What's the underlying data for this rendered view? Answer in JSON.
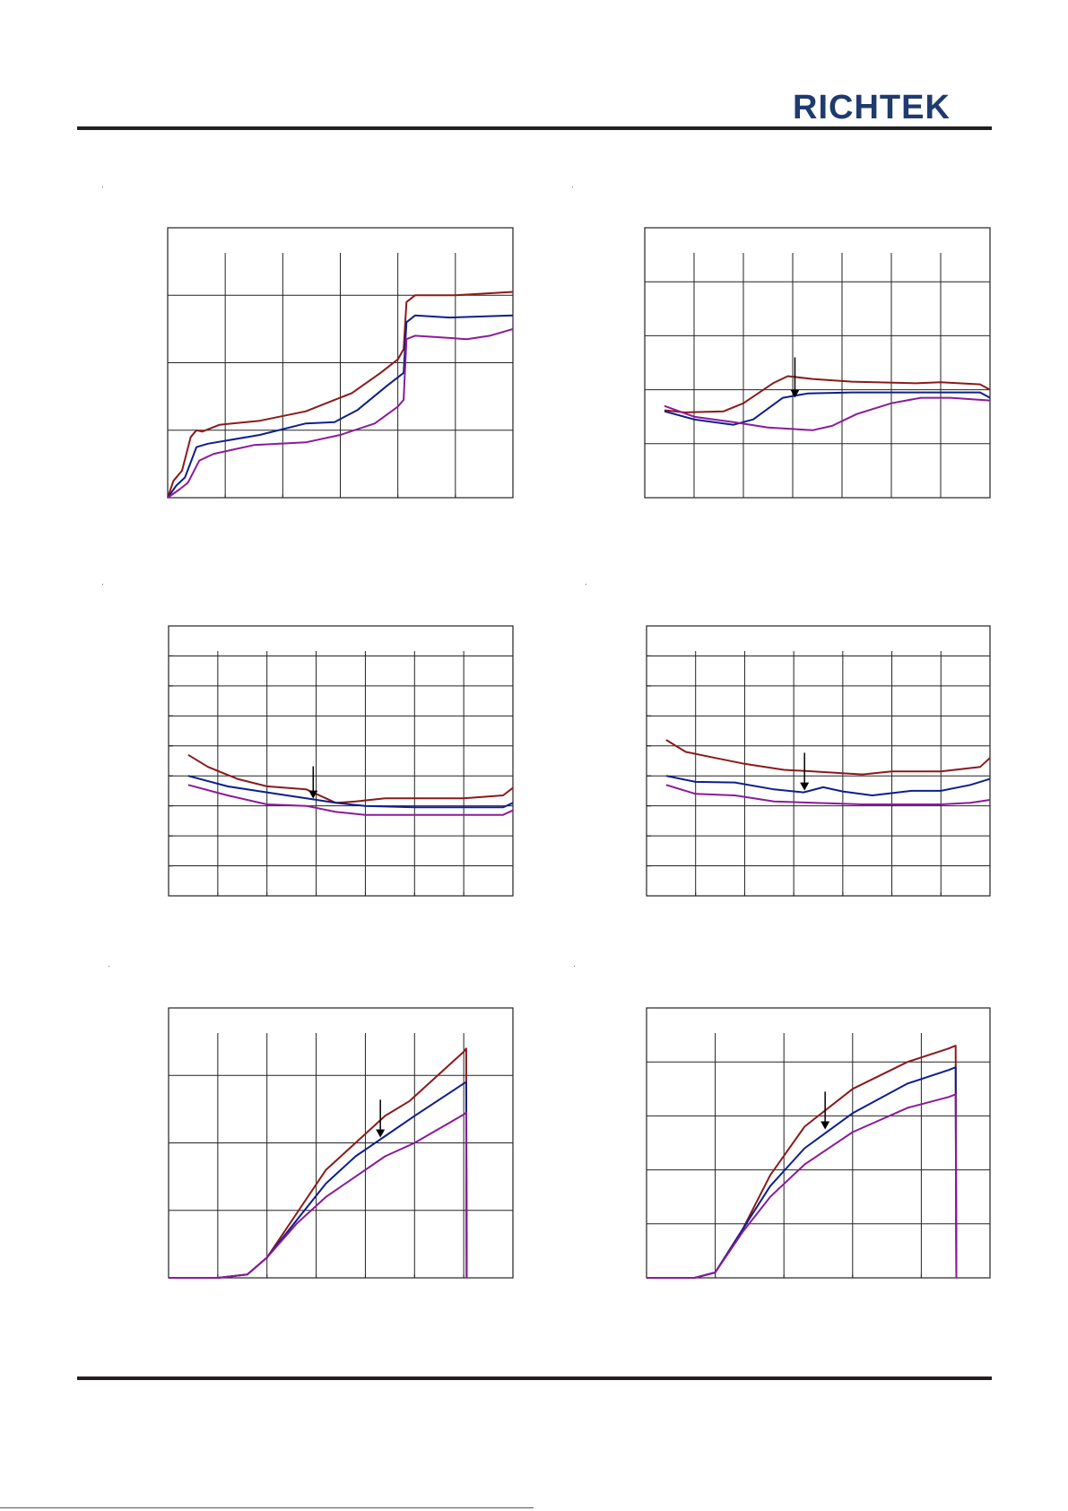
{
  "header": {
    "logo_text": "RICHTEK",
    "logo_color": "#1f3a6e"
  },
  "colors": {
    "series1": "#8b1a1a",
    "series2": "#0d1f8c",
    "series3": "#8b1a9b",
    "grid": "#222222"
  },
  "footer": {
    "text": ""
  },
  "chart_data": [
    {
      "type": "line",
      "grid": true,
      "xlim": [
        0,
        6
      ],
      "ylim": [
        0,
        4
      ],
      "xdiv": 6,
      "ydiv": 4,
      "yticks": false,
      "series": [
        {
          "values": [
            [
              0,
              0
            ],
            [
              0.1,
              0.25
            ],
            [
              0.25,
              0.4
            ],
            [
              0.4,
              0.9
            ],
            [
              0.5,
              1
            ],
            [
              0.6,
              0.98
            ],
            [
              0.9,
              1.08
            ],
            [
              1.6,
              1.14
            ],
            [
              2.4,
              1.28
            ],
            [
              3.2,
              1.55
            ],
            [
              3.7,
              1.85
            ],
            [
              4.0,
              2.05
            ],
            [
              4.1,
              2.2
            ],
            [
              4.15,
              2.9
            ],
            [
              4.3,
              3.0
            ],
            [
              5.0,
              3.0
            ],
            [
              6.0,
              3.05
            ]
          ]
        },
        {
          "values": [
            [
              0,
              0
            ],
            [
              0.15,
              0.18
            ],
            [
              0.3,
              0.3
            ],
            [
              0.5,
              0.75
            ],
            [
              0.7,
              0.8
            ],
            [
              1.6,
              0.93
            ],
            [
              2.4,
              1.1
            ],
            [
              2.9,
              1.12
            ],
            [
              3.3,
              1.3
            ],
            [
              3.8,
              1.65
            ],
            [
              4.1,
              1.85
            ],
            [
              4.15,
              2.6
            ],
            [
              4.3,
              2.7
            ],
            [
              4.9,
              2.67
            ],
            [
              6.0,
              2.7
            ]
          ]
        },
        {
          "values": [
            [
              0,
              0
            ],
            [
              0.2,
              0.12
            ],
            [
              0.35,
              0.22
            ],
            [
              0.55,
              0.55
            ],
            [
              0.8,
              0.65
            ],
            [
              1.5,
              0.78
            ],
            [
              2.4,
              0.82
            ],
            [
              3.0,
              0.93
            ],
            [
              3.6,
              1.1
            ],
            [
              4.0,
              1.35
            ],
            [
              4.1,
              1.45
            ],
            [
              4.15,
              2.35
            ],
            [
              4.3,
              2.4
            ],
            [
              5.2,
              2.35
            ],
            [
              5.6,
              2.4
            ],
            [
              6.0,
              2.5
            ]
          ]
        }
      ]
    },
    {
      "type": "line",
      "grid": true,
      "xlim": [
        0,
        7
      ],
      "ylim": [
        0,
        5
      ],
      "xdiv": 7,
      "ydiv": 5,
      "yticks": false,
      "series": [
        {
          "values": [
            [
              0.4,
              1.62
            ],
            [
              0.8,
              1.58
            ],
            [
              1.6,
              1.6
            ],
            [
              2.0,
              1.75
            ],
            [
              2.6,
              2.12
            ],
            [
              2.9,
              2.25
            ],
            [
              3.4,
              2.2
            ],
            [
              4.2,
              2.15
            ],
            [
              5.5,
              2.12
            ],
            [
              6.0,
              2.14
            ],
            [
              6.8,
              2.1
            ],
            [
              7.0,
              2.0
            ]
          ]
        },
        {
          "values": [
            [
              0.4,
              1.6
            ],
            [
              1.0,
              1.45
            ],
            [
              1.8,
              1.35
            ],
            [
              2.2,
              1.45
            ],
            [
              2.8,
              1.85
            ],
            [
              3.3,
              1.93
            ],
            [
              4.2,
              1.95
            ],
            [
              5.0,
              1.95
            ],
            [
              6.2,
              1.95
            ],
            [
              6.8,
              1.95
            ],
            [
              7.0,
              1.85
            ]
          ]
        },
        {
          "values": [
            [
              0.4,
              1.7
            ],
            [
              1.0,
              1.5
            ],
            [
              1.8,
              1.4
            ],
            [
              2.5,
              1.3
            ],
            [
              3.4,
              1.25
            ],
            [
              3.8,
              1.33
            ],
            [
              4.3,
              1.55
            ],
            [
              5.0,
              1.75
            ],
            [
              5.6,
              1.85
            ],
            [
              6.2,
              1.85
            ],
            [
              7.0,
              1.8
            ]
          ]
        }
      ]
    },
    {
      "type": "line",
      "grid": true,
      "xlim": [
        0,
        7
      ],
      "ylim": [
        0,
        9
      ],
      "xdiv": 7,
      "ydiv": 9,
      "yticks": true,
      "series": [
        {
          "values": [
            [
              0.4,
              4.7
            ],
            [
              0.8,
              4.3
            ],
            [
              1.4,
              3.9
            ],
            [
              2.0,
              3.65
            ],
            [
              2.8,
              3.55
            ],
            [
              3.4,
              3.1
            ],
            [
              3.8,
              3.15
            ],
            [
              4.4,
              3.25
            ],
            [
              5.0,
              3.25
            ],
            [
              6.0,
              3.25
            ],
            [
              6.8,
              3.35
            ],
            [
              7.0,
              3.6
            ]
          ]
        },
        {
          "values": [
            [
              0.4,
              4.0
            ],
            [
              1.2,
              3.65
            ],
            [
              2.0,
              3.45
            ],
            [
              2.8,
              3.25
            ],
            [
              3.4,
              3.1
            ],
            [
              4.0,
              3.0
            ],
            [
              5.0,
              2.95
            ],
            [
              6.0,
              2.95
            ],
            [
              6.8,
              2.95
            ],
            [
              7.0,
              3.1
            ]
          ]
        },
        {
          "values": [
            [
              0.4,
              3.7
            ],
            [
              1.2,
              3.35
            ],
            [
              2.0,
              3.05
            ],
            [
              2.8,
              3.0
            ],
            [
              3.4,
              2.8
            ],
            [
              4.0,
              2.7
            ],
            [
              5.0,
              2.7
            ],
            [
              6.0,
              2.7
            ],
            [
              6.8,
              2.7
            ],
            [
              7.0,
              2.85
            ]
          ]
        }
      ]
    },
    {
      "type": "line",
      "grid": true,
      "xlim": [
        0,
        7
      ],
      "ylim": [
        0,
        9
      ],
      "xdiv": 7,
      "ydiv": 9,
      "yticks": true,
      "series": [
        {
          "values": [
            [
              0.4,
              5.2
            ],
            [
              0.8,
              4.8
            ],
            [
              1.4,
              4.6
            ],
            [
              2.0,
              4.4
            ],
            [
              2.8,
              4.2
            ],
            [
              3.4,
              4.15
            ],
            [
              4.4,
              4.05
            ],
            [
              5.0,
              4.15
            ],
            [
              6.0,
              4.15
            ],
            [
              6.8,
              4.3
            ],
            [
              7.0,
              4.6
            ]
          ]
        },
        {
          "values": [
            [
              0.4,
              4.0
            ],
            [
              1.0,
              3.8
            ],
            [
              1.8,
              3.78
            ],
            [
              2.6,
              3.55
            ],
            [
              3.2,
              3.45
            ],
            [
              3.6,
              3.62
            ],
            [
              4.0,
              3.48
            ],
            [
              4.6,
              3.35
            ],
            [
              5.4,
              3.5
            ],
            [
              6.0,
              3.5
            ],
            [
              6.6,
              3.7
            ],
            [
              7.0,
              3.9
            ]
          ]
        },
        {
          "values": [
            [
              0.4,
              3.7
            ],
            [
              1.0,
              3.4
            ],
            [
              1.8,
              3.35
            ],
            [
              2.6,
              3.15
            ],
            [
              3.4,
              3.1
            ],
            [
              4.4,
              3.05
            ],
            [
              5.4,
              3.05
            ],
            [
              6.0,
              3.05
            ],
            [
              6.6,
              3.1
            ],
            [
              7.0,
              3.2
            ]
          ]
        }
      ]
    },
    {
      "type": "line",
      "grid": true,
      "xlim": [
        0,
        7
      ],
      "ylim": [
        0,
        4
      ],
      "xdiv": 7,
      "ydiv": 4,
      "yticks": false,
      "series": [
        {
          "values": [
            [
              0,
              0
            ],
            [
              1.0,
              0
            ],
            [
              1.6,
              0.05
            ],
            [
              2.0,
              0.3
            ],
            [
              2.6,
              0.95
            ],
            [
              3.2,
              1.6
            ],
            [
              3.8,
              2.0
            ],
            [
              4.4,
              2.4
            ],
            [
              4.9,
              2.62
            ],
            [
              6.0,
              3.35
            ],
            [
              6.05,
              3.4
            ],
            [
              6.06,
              0
            ]
          ]
        },
        {
          "values": [
            [
              0,
              0
            ],
            [
              1.0,
              0
            ],
            [
              1.6,
              0.05
            ],
            [
              2.0,
              0.3
            ],
            [
              2.6,
              0.85
            ],
            [
              3.2,
              1.4
            ],
            [
              3.8,
              1.8
            ],
            [
              4.4,
              2.1
            ],
            [
              5.0,
              2.4
            ],
            [
              6.0,
              2.88
            ],
            [
              6.05,
              2.9
            ],
            [
              6.06,
              0
            ]
          ]
        },
        {
          "values": [
            [
              0,
              0
            ],
            [
              1.0,
              0
            ],
            [
              1.6,
              0.05
            ],
            [
              2.0,
              0.3
            ],
            [
              2.6,
              0.8
            ],
            [
              3.2,
              1.2
            ],
            [
              3.8,
              1.5
            ],
            [
              4.4,
              1.8
            ],
            [
              5.0,
              2.0
            ],
            [
              6.0,
              2.42
            ],
            [
              6.05,
              2.45
            ],
            [
              6.06,
              0
            ]
          ]
        }
      ]
    },
    {
      "type": "line",
      "grid": true,
      "xlim": [
        0,
        5
      ],
      "ylim": [
        0,
        5
      ],
      "xdiv": 5,
      "ydiv": 5,
      "yticks": false,
      "series": [
        {
          "values": [
            [
              0,
              0
            ],
            [
              0.7,
              0
            ],
            [
              1.0,
              0.1
            ],
            [
              1.4,
              0.9
            ],
            [
              1.8,
              1.9
            ],
            [
              2.3,
              2.8
            ],
            [
              3.0,
              3.5
            ],
            [
              3.8,
              4.0
            ],
            [
              4.4,
              4.25
            ],
            [
              4.5,
              4.3
            ],
            [
              4.51,
              0
            ]
          ]
        },
        {
          "values": [
            [
              0,
              0
            ],
            [
              0.7,
              0
            ],
            [
              1.0,
              0.1
            ],
            [
              1.4,
              0.9
            ],
            [
              1.8,
              1.7
            ],
            [
              2.3,
              2.4
            ],
            [
              3.0,
              3.05
            ],
            [
              3.8,
              3.6
            ],
            [
              4.4,
              3.85
            ],
            [
              4.5,
              3.9
            ],
            [
              4.51,
              0
            ]
          ]
        },
        {
          "values": [
            [
              0,
              0
            ],
            [
              0.7,
              0
            ],
            [
              1.0,
              0.1
            ],
            [
              1.4,
              0.85
            ],
            [
              1.8,
              1.5
            ],
            [
              2.3,
              2.1
            ],
            [
              3.0,
              2.7
            ],
            [
              3.8,
              3.15
            ],
            [
              4.4,
              3.35
            ],
            [
              4.5,
              3.4
            ],
            [
              4.51,
              0
            ]
          ]
        }
      ]
    }
  ]
}
